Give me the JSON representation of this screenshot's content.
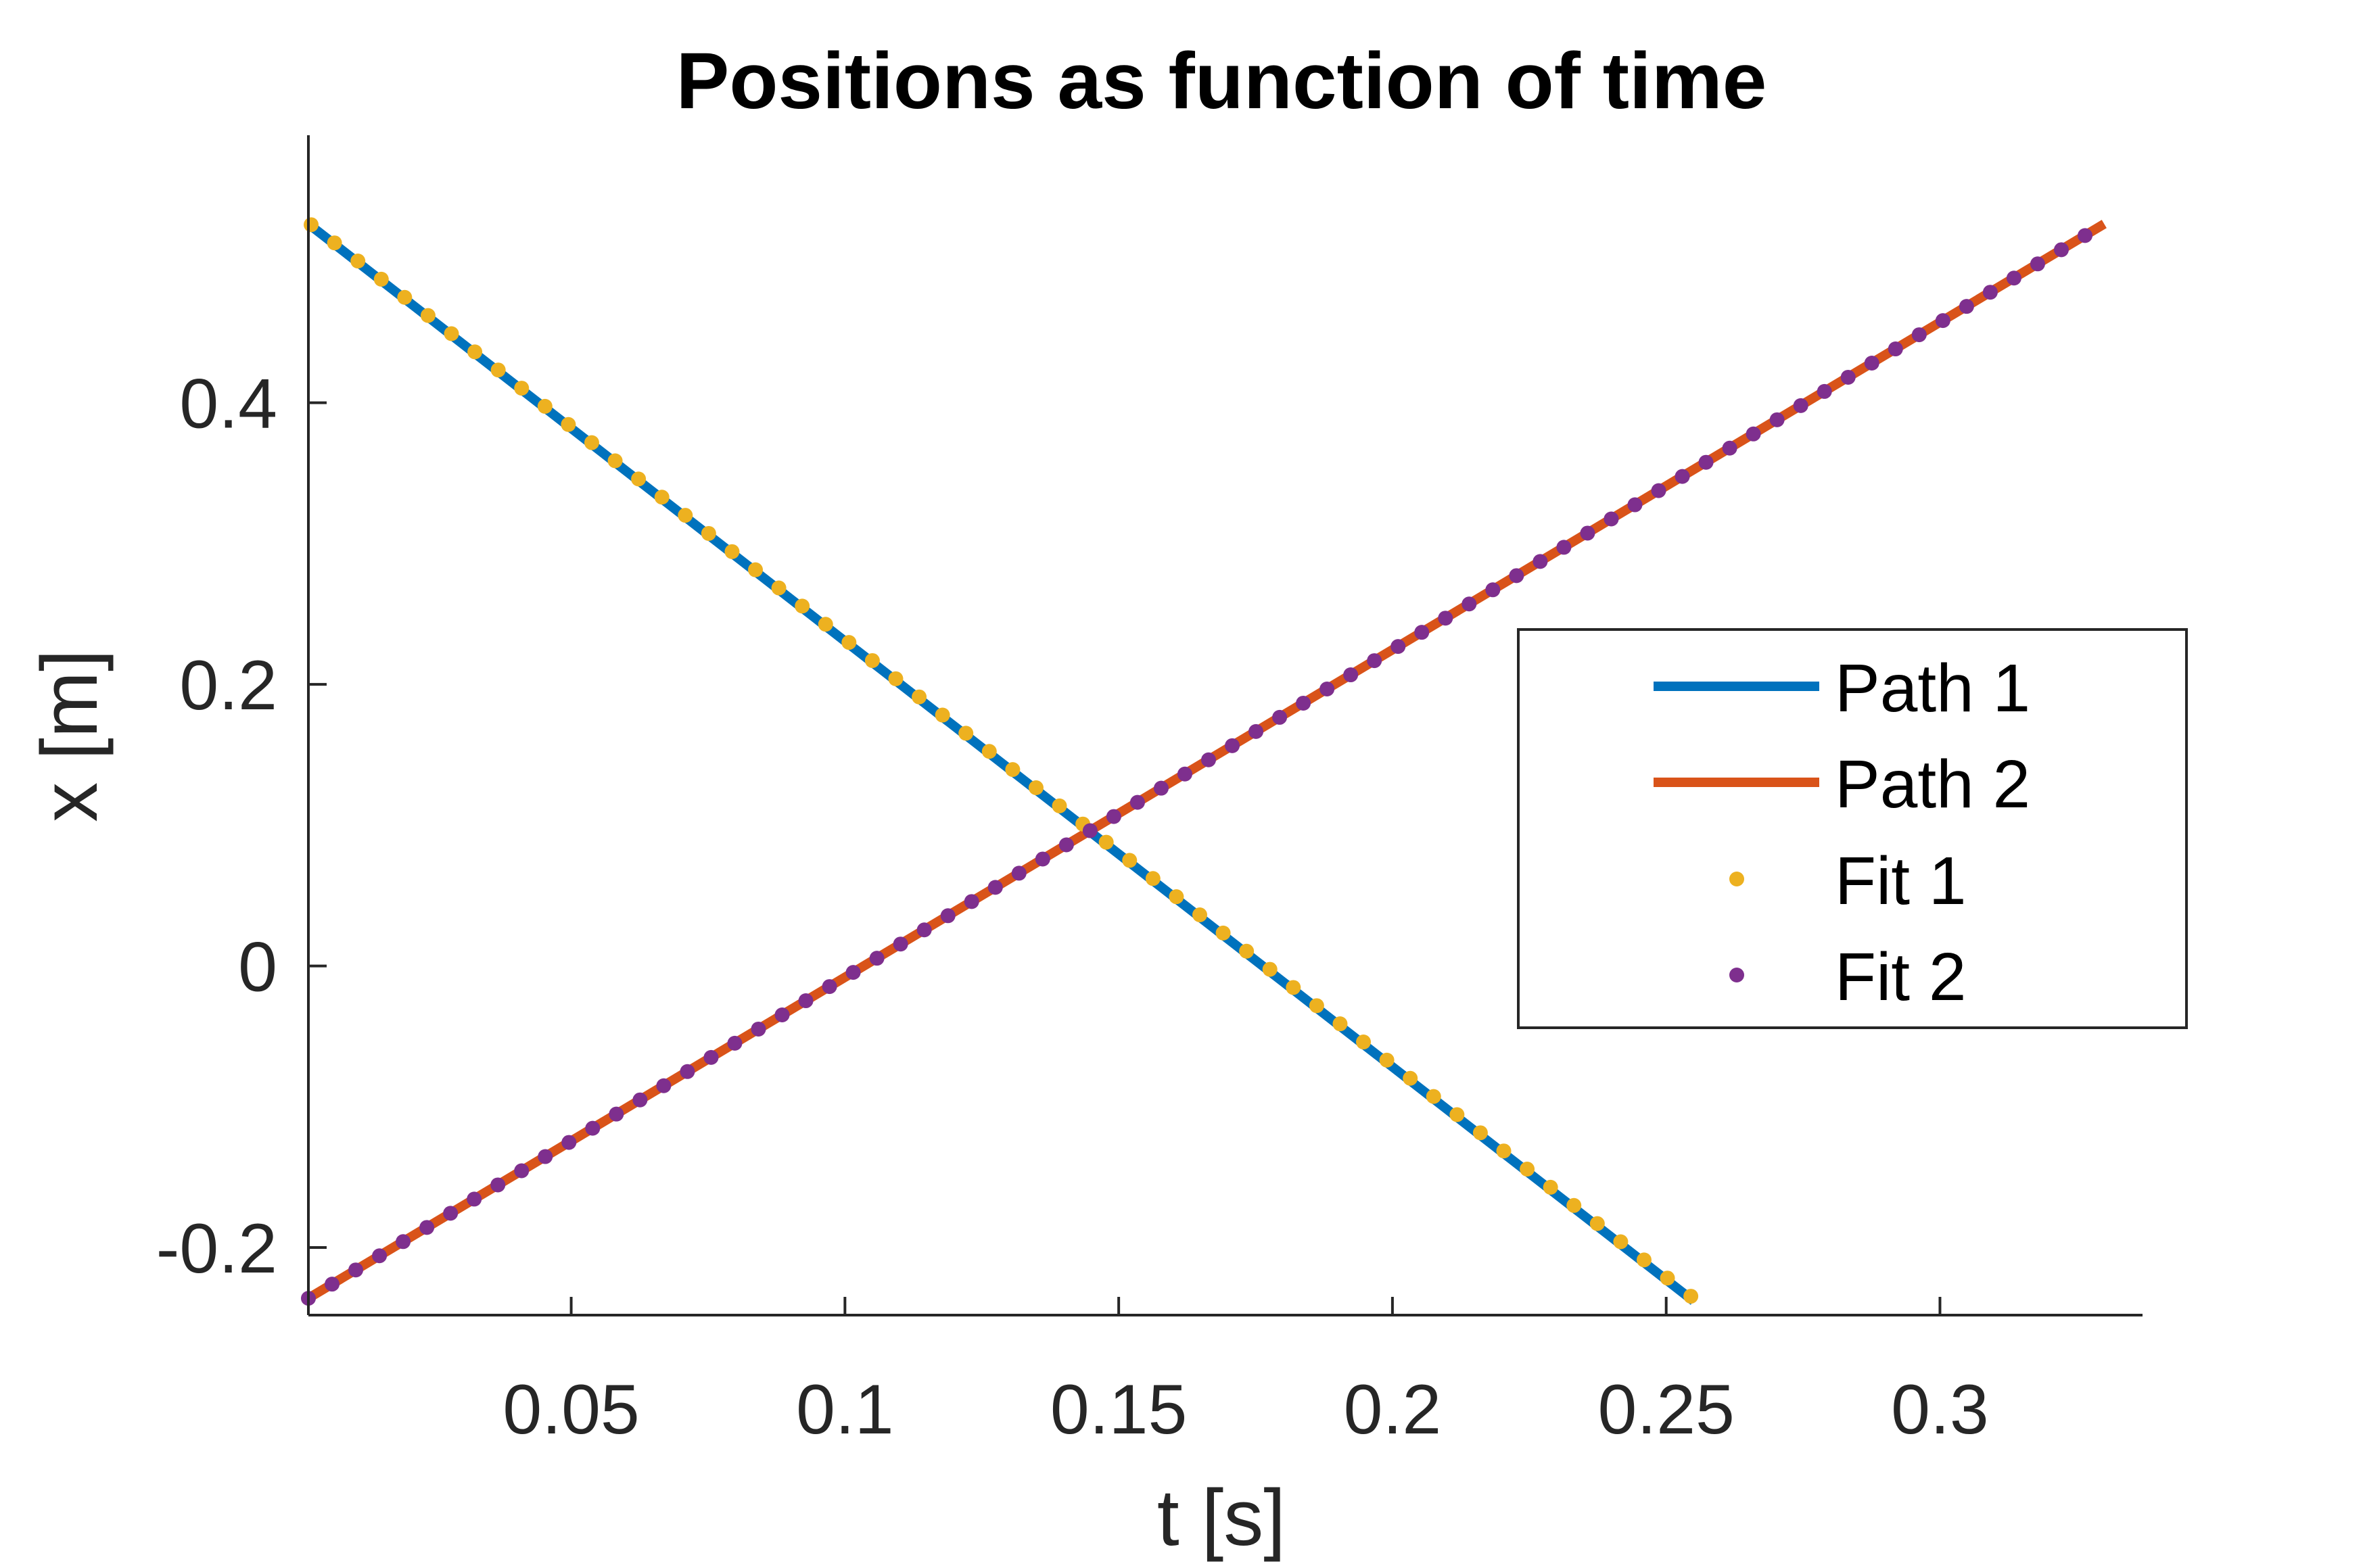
{
  "chart_data": {
    "type": "line",
    "title": "Positions as function of time",
    "xlabel": "t [s]",
    "ylabel": "x [m]",
    "xlim": [
      0.002,
      0.337
    ],
    "ylim": [
      -0.248,
      0.59
    ],
    "xticks": [
      {
        "value": 0.05,
        "label": "0.05"
      },
      {
        "value": 0.1,
        "label": "0.1"
      },
      {
        "value": 0.15,
        "label": "0.15"
      },
      {
        "value": 0.2,
        "label": "0.2"
      },
      {
        "value": 0.25,
        "label": "0.25"
      },
      {
        "value": 0.3,
        "label": "0.3"
      }
    ],
    "yticks": [
      {
        "value": -0.2,
        "label": "-0.2"
      },
      {
        "value": 0,
        "label": "0"
      },
      {
        "value": 0.2,
        "label": "0.2"
      },
      {
        "value": 0.4,
        "label": "0.4"
      }
    ],
    "grid": false,
    "legend_position": "right-middle",
    "series": [
      {
        "name": "Path 1",
        "style": "line",
        "color": "#0072BD",
        "x": [
          0.002,
          0.255
        ],
        "y": [
          0.527,
          -0.238
        ]
      },
      {
        "name": "Path 2",
        "style": "line",
        "color": "#D95319",
        "x": [
          0.002,
          0.33
        ],
        "y": [
          -0.236,
          0.527
        ]
      },
      {
        "name": "Fit 1",
        "style": "dots",
        "color": "#EDB120",
        "x_start": 0.0025,
        "x_end": 0.2545,
        "count": 60,
        "slope": -3.02,
        "intercept": 0.534
      },
      {
        "name": "Fit 2",
        "style": "dots",
        "color": "#7E2F8E",
        "x_start": 0.002,
        "x_end": 0.3265,
        "count": 76,
        "slope": 2.326,
        "intercept": -0.2407
      }
    ]
  }
}
